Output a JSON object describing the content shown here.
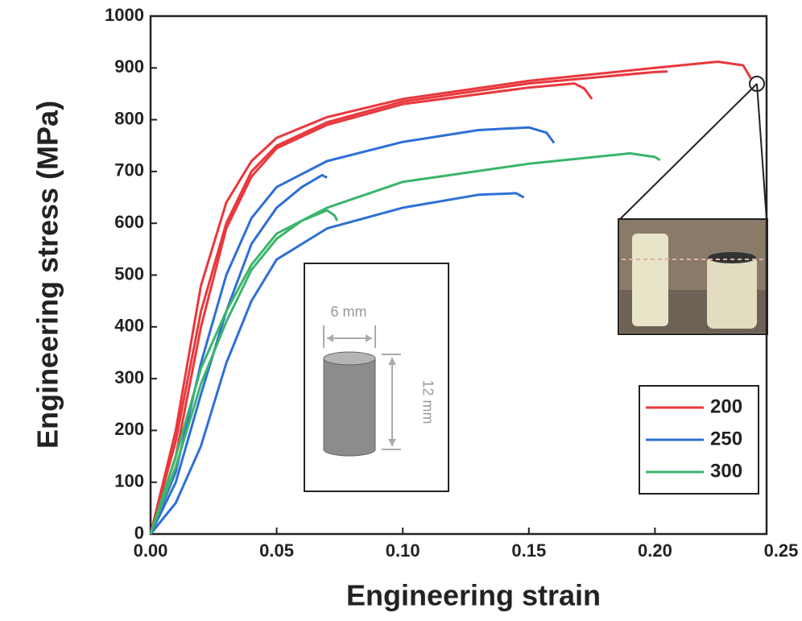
{
  "chart_data": {
    "type": "line",
    "x_label": "Engineering strain",
    "y_label": "Engineering stress (MPa)",
    "xlim": [
      0,
      0.25
    ],
    "ylim": [
      0,
      1000
    ],
    "xticks": [
      {
        "value": 0,
        "label": "0.00"
      },
      {
        "value": 0.05,
        "label": "0.05"
      },
      {
        "value": 0.1,
        "label": "0.10"
      },
      {
        "value": 0.15,
        "label": "0.15"
      },
      {
        "value": 0.2,
        "label": "0.20"
      },
      {
        "value": 0.25,
        "label": "0.25"
      }
    ],
    "yticks": [
      0,
      100,
      200,
      300,
      400,
      500,
      600,
      700,
      800,
      900,
      1000
    ],
    "legend": "lower right",
    "annotations": [
      "6 mm",
      "12 mm"
    ],
    "series": [
      {
        "name": "200",
        "color": "#e8383d",
        "curves": [
          {
            "x": [
              0,
              0.01,
              0.02,
              0.03,
              0.04,
              0.05,
              0.07,
              0.1,
              0.15,
              0.2,
              0.225,
              0.235,
              0.238
            ],
            "values": [
              0,
              200,
              480,
              640,
              720,
              765,
              805,
              840,
              875,
              900,
              912,
              905,
              880
            ]
          },
          {
            "x": [
              0,
              0.01,
              0.02,
              0.03,
              0.04,
              0.05,
              0.07,
              0.1,
              0.15,
              0.2,
              0.205
            ],
            "values": [
              0,
              180,
              430,
              600,
              700,
              750,
              795,
              835,
              870,
              892,
              893
            ]
          },
          {
            "x": [
              0,
              0.01,
              0.02,
              0.03,
              0.04,
              0.05,
              0.07,
              0.1,
              0.15,
              0.168,
              0.172,
              0.175
            ],
            "values": [
              0,
              150,
              400,
              590,
              690,
              745,
              790,
              830,
              862,
              870,
              860,
              840
            ]
          }
        ]
      },
      {
        "name": "250",
        "color": "#2e6fd6",
        "curves": [
          {
            "x": [
              0,
              0.01,
              0.02,
              0.03,
              0.04,
              0.05,
              0.07,
              0.1,
              0.13,
              0.15,
              0.157,
              0.16
            ],
            "values": [
              0,
              120,
              330,
              500,
              610,
              670,
              720,
              757,
              780,
              785,
              775,
              755
            ]
          },
          {
            "x": [
              0,
              0.01,
              0.02,
              0.03,
              0.04,
              0.05,
              0.06,
              0.068,
              0.07
            ],
            "values": [
              0,
              100,
              270,
              430,
              560,
              630,
              670,
              693,
              688
            ]
          },
          {
            "x": [
              0,
              0.01,
              0.02,
              0.03,
              0.04,
              0.05,
              0.07,
              0.1,
              0.13,
              0.145,
              0.148
            ],
            "values": [
              0,
              60,
              170,
              330,
              450,
              530,
              590,
              630,
              655,
              658,
              650
            ]
          }
        ]
      },
      {
        "name": "300",
        "color": "#3bb56a",
        "curves": [
          {
            "x": [
              0,
              0.01,
              0.02,
              0.03,
              0.04,
              0.05,
              0.07,
              0.1,
              0.15,
              0.19,
              0.2,
              0.202
            ],
            "values": [
              0,
              150,
              320,
              430,
              520,
              580,
              630,
              680,
              715,
              735,
              728,
              722
            ]
          },
          {
            "x": [
              0,
              0.01,
              0.02,
              0.03,
              0.04,
              0.05,
              0.06,
              0.07,
              0.073,
              0.074
            ],
            "values": [
              0,
              130,
              290,
              410,
              510,
              570,
              605,
              625,
              615,
              605
            ]
          }
        ]
      }
    ]
  }
}
